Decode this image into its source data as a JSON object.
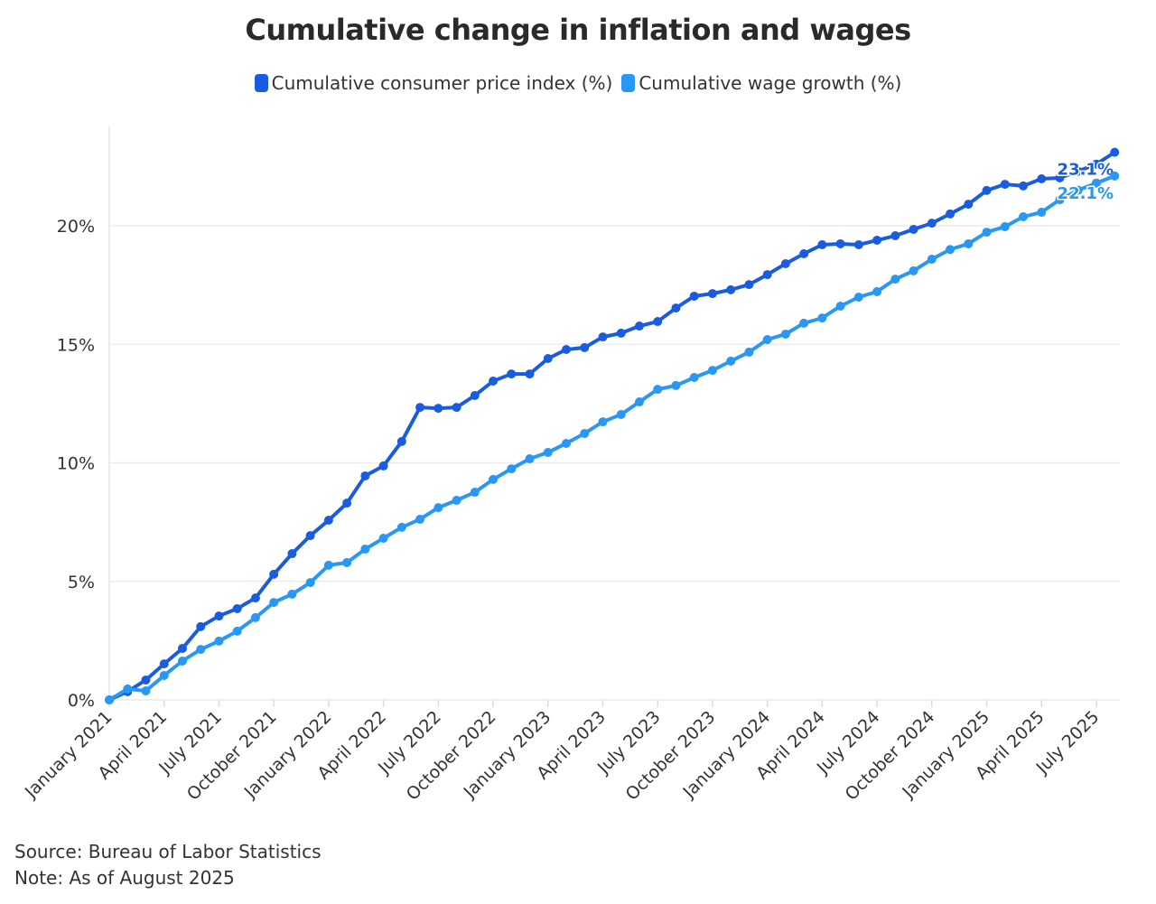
{
  "chart_data": {
    "type": "line",
    "title": "Cumulative change in inflation and wages",
    "xlabel": "",
    "ylabel": "",
    "ylim": [
      0,
      24.2
    ],
    "y_ticks": [
      "0%",
      "5%",
      "10%",
      "15%",
      "20%"
    ],
    "y_tick_values": [
      0,
      5,
      10,
      15,
      20
    ],
    "grid": "horizontal",
    "legend": "top-center",
    "x_tick_labels": [
      "January 2021",
      "April 2021",
      "July 2021",
      "October 2021",
      "January 2022",
      "April 2022",
      "July 2022",
      "October 2022",
      "January 2023",
      "April 2023",
      "July 2023",
      "October 2023",
      "January 2024",
      "April 2024",
      "July 2024",
      "October 2024",
      "January 2025",
      "April 2025",
      "July 2025"
    ],
    "x_start": "January 2021",
    "x_end": "August 2025",
    "series": [
      {
        "name": "Cumulative consumer price index (%)",
        "color": "#1a5ce0",
        "end_label": "23.1%",
        "values": [
          0,
          0.35,
          0.84,
          1.52,
          2.17,
          3.09,
          3.54,
          3.85,
          4.3,
          5.3,
          6.17,
          6.93,
          7.58,
          8.3,
          9.45,
          9.87,
          10.9,
          12.34,
          12.3,
          12.34,
          12.84,
          13.45,
          13.75,
          13.75,
          14.4,
          14.78,
          14.86,
          15.31,
          15.47,
          15.77,
          15.96,
          16.53,
          17.03,
          17.14,
          17.3,
          17.52,
          17.94,
          18.4,
          18.82,
          19.2,
          19.24,
          19.2,
          19.39,
          19.58,
          19.85,
          20.11,
          20.5,
          20.91,
          21.49,
          21.75,
          21.68,
          21.98,
          22.02,
          22.3,
          22.6,
          23.1
        ]
      },
      {
        "name": "Cumulative wage growth (%)",
        "color": "#2897f5",
        "end_label": "22.1%",
        "values": [
          0,
          0.46,
          0.38,
          1.03,
          1.64,
          2.13,
          2.48,
          2.9,
          3.47,
          4.11,
          4.46,
          4.95,
          5.68,
          5.79,
          6.36,
          6.82,
          7.28,
          7.62,
          8.11,
          8.42,
          8.76,
          9.3,
          9.75,
          10.17,
          10.44,
          10.82,
          11.24,
          11.73,
          12.04,
          12.57,
          13.1,
          13.26,
          13.6,
          13.9,
          14.29,
          14.67,
          15.2,
          15.43,
          15.89,
          16.11,
          16.61,
          16.99,
          17.22,
          17.75,
          18.1,
          18.59,
          19.0,
          19.24,
          19.73,
          19.96,
          20.38,
          20.57,
          21.1,
          21.5,
          21.8,
          22.1
        ]
      }
    ]
  },
  "footer": {
    "source": "Source: Bureau of Labor Statistics",
    "note": "Note: As of August 2025"
  }
}
